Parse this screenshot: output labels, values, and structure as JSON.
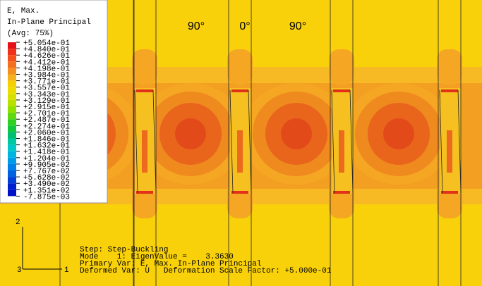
{
  "legend": {
    "title": [
      "E, Max.",
      "In-Plane Principal",
      "(Avg: 75%)"
    ],
    "labels": [
      "+5.054e-01",
      "+4.840e-01",
      "+4.626e-01",
      "+4.412e-01",
      "+4.198e-01",
      "+3.984e-01",
      "+3.771e-01",
      "+3.557e-01",
      "+3.343e-01",
      "+3.129e-01",
      "+2.915e-01",
      "+2.701e-01",
      "+2.487e-01",
      "+2.274e-01",
      "+2.060e-01",
      "+1.846e-01",
      "+1.632e-01",
      "+1.418e-01",
      "+1.204e-01",
      "+9.905e-02",
      "+7.767e-02",
      "+5.628e-02",
      "+3.490e-02",
      "+1.351e-02",
      "-7.875e-03"
    ],
    "colors": [
      "#e6121a",
      "#f0301a",
      "#f5501a",
      "#f2701e",
      "#f59020",
      "#f5b020",
      "#f5d000",
      "#ecdc00",
      "#d8e000",
      "#b8e000",
      "#90e000",
      "#60d810",
      "#30d020",
      "#10c840",
      "#00c070",
      "#00c8a0",
      "#00c8c8",
      "#00b4e0",
      "#009ce8",
      "#0080e8",
      "#0060e0",
      "#0040d8",
      "#0020d0",
      "#0010c8"
    ]
  },
  "annotations": [
    "90°",
    "0°",
    "90°"
  ],
  "status": [
    "Step: Step-Buckling",
    "Mode    1: EigenValue =    3.3630",
    "Primary Var: E, Max. In-Plane Principal",
    "Deformed Var: U   Deformation Scale Factor: +5.000e-01"
  ],
  "triad": {
    "y": "2",
    "z": "3",
    "x": "1"
  }
}
